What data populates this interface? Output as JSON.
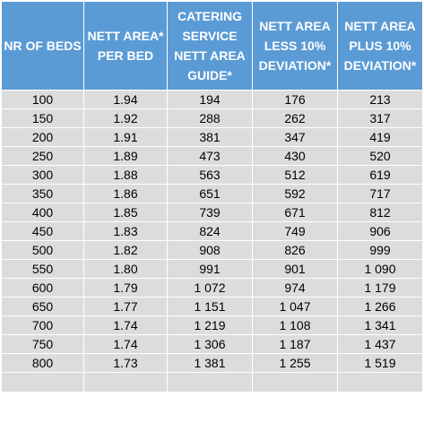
{
  "headers": [
    "NR OF BEDS",
    "NETT AREA* PER BED",
    "CATERING SERVICE NETT AREA GUIDE*",
    "NETT AREA LESS 10% DEVIATION*",
    "NETT AREA PLUS 10% DEVIATION*"
  ],
  "rows": [
    [
      "100",
      "1.94",
      "194",
      "176",
      "213"
    ],
    [
      "150",
      "1.92",
      "288",
      "262",
      "317"
    ],
    [
      "200",
      "1.91",
      "381",
      "347",
      "419"
    ],
    [
      "250",
      "1.89",
      "473",
      "430",
      "520"
    ],
    [
      "300",
      "1.88",
      "563",
      "512",
      "619"
    ],
    [
      "350",
      "1.86",
      "651",
      "592",
      "717"
    ],
    [
      "400",
      "1.85",
      "739",
      "671",
      "812"
    ],
    [
      "450",
      "1.83",
      "824",
      "749",
      "906"
    ],
    [
      "500",
      "1.82",
      "908",
      "826",
      "999"
    ],
    [
      "550",
      "1.80",
      "991",
      "901",
      "1 090"
    ],
    [
      "600",
      "1.79",
      "1 072",
      "974",
      "1 179"
    ],
    [
      "650",
      "1.77",
      "1 151",
      "1 047",
      "1 266"
    ],
    [
      "700",
      "1.74",
      "1 219",
      "1 108",
      "1 341"
    ],
    [
      "750",
      "1.74",
      "1 306",
      "1 187",
      "1 437"
    ],
    [
      "800",
      "1.73",
      "1 381",
      "1 255",
      "1 519"
    ]
  ],
  "colors": {
    "header_bg": "#5b9bd5",
    "header_text": "#ffffff",
    "row_bg": "#dcdcdc"
  }
}
